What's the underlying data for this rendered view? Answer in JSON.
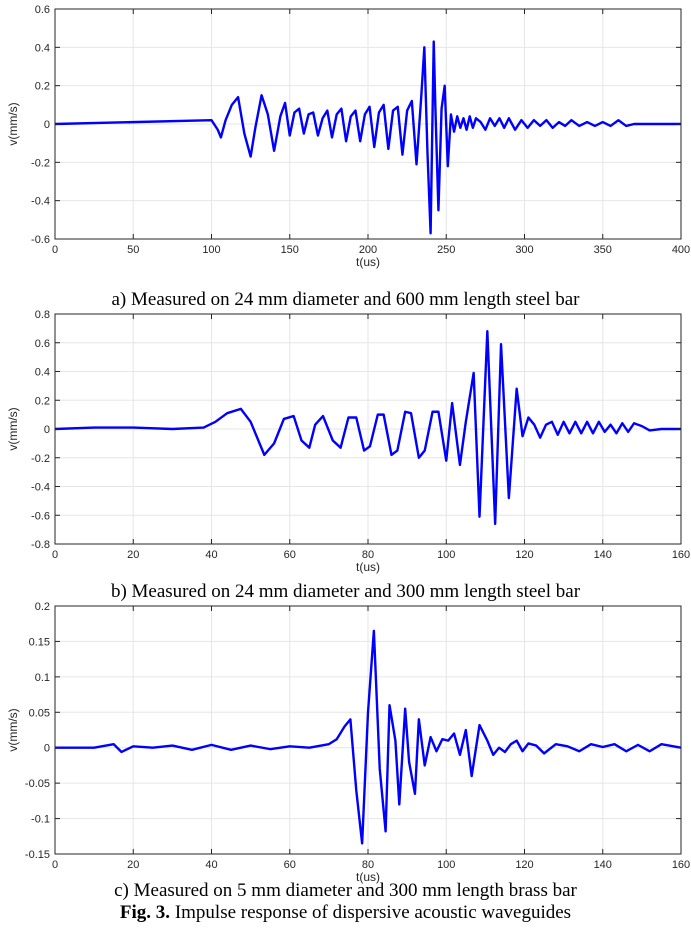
{
  "colors": {
    "line": "#0000ff",
    "grid": "#e6e6e6",
    "axis": "#262626"
  },
  "captions": {
    "a": "a) Measured on 24 mm diameter and 600 mm length steel bar",
    "b": "b) Measured on 24 mm diameter and 300 mm length steel bar",
    "c": "c) Measured on 5 mm diameter and 300 mm length brass bar",
    "fig_label": "Fig. 3.",
    "fig_text": " Impulse response of dispersive acoustic waveguides"
  },
  "chart_data": [
    {
      "type": "line",
      "title": "",
      "xlabel": "t(us)",
      "ylabel": "v(mm/s)",
      "xlim": [
        0,
        400
      ],
      "ylim": [
        -0.6,
        0.6
      ],
      "xticks": [
        0,
        50,
        100,
        150,
        200,
        250,
        300,
        350,
        400
      ],
      "yticks": [
        -0.6,
        -0.4,
        -0.2,
        0,
        0.2,
        0.4,
        0.6
      ],
      "grid": true,
      "series": [
        {
          "x": [
            0,
            100,
            104,
            106,
            109,
            113,
            117,
            121,
            125,
            128,
            132,
            136,
            140,
            144,
            147,
            150,
            153,
            156,
            159,
            162,
            165,
            168,
            171,
            174,
            177,
            180,
            183,
            186,
            189,
            192,
            195,
            198,
            201,
            204,
            207,
            210,
            213,
            216,
            219,
            222,
            225,
            228,
            231,
            234,
            236,
            238,
            240,
            242,
            243,
            245,
            247,
            249,
            251,
            253,
            255,
            257,
            259,
            261,
            263,
            265,
            267,
            269,
            272,
            275,
            278,
            281,
            284,
            287,
            290,
            294,
            298,
            302,
            306,
            310,
            314,
            318,
            322,
            326,
            330,
            335,
            340,
            345,
            350,
            355,
            360,
            365,
            370,
            380,
            400
          ],
          "y": [
            0,
            0.02,
            -0.03,
            -0.07,
            0.02,
            0.1,
            0.14,
            -0.05,
            -0.17,
            -0.02,
            0.15,
            0.05,
            -0.14,
            0.04,
            0.11,
            -0.06,
            0.06,
            0.08,
            -0.05,
            0.05,
            0.06,
            -0.06,
            0.03,
            0.07,
            -0.07,
            0.05,
            0.08,
            -0.09,
            0.04,
            0.07,
            -0.09,
            0.05,
            0.09,
            -0.12,
            0.06,
            0.1,
            -0.13,
            0.07,
            0.09,
            -0.16,
            0.07,
            0.12,
            -0.21,
            0.14,
            0.4,
            -0.15,
            -0.57,
            0.43,
            0.1,
            -0.45,
            0.08,
            0.2,
            -0.22,
            0.05,
            -0.04,
            0.04,
            -0.02,
            0.03,
            -0.03,
            0.04,
            -0.02,
            0.03,
            0.01,
            -0.03,
            0.03,
            -0.01,
            0.03,
            -0.02,
            0.03,
            -0.03,
            0.02,
            -0.02,
            0.02,
            -0.01,
            0.02,
            -0.02,
            0.01,
            -0.01,
            0.02,
            -0.01,
            0.01,
            -0.01,
            0.01,
            -0.01,
            0.02,
            -0.01,
            0,
            0,
            0
          ]
        }
      ]
    },
    {
      "type": "line",
      "title": "",
      "xlabel": "t(us)",
      "ylabel": "v(mm/s)",
      "xlim": [
        0,
        160
      ],
      "ylim": [
        -0.8,
        0.8
      ],
      "xticks": [
        0,
        20,
        40,
        60,
        80,
        100,
        120,
        140,
        160
      ],
      "yticks": [
        -0.8,
        -0.6,
        -0.4,
        -0.2,
        0,
        0.2,
        0.4,
        0.6,
        0.8
      ],
      "grid": true,
      "series": [
        {
          "x": [
            0,
            10,
            20,
            30,
            38,
            41,
            44,
            47.5,
            50,
            53.5,
            56,
            58.5,
            61,
            63,
            65,
            66.5,
            68.5,
            71,
            73,
            75,
            77,
            79,
            80.5,
            82.5,
            84,
            86,
            87.5,
            89.5,
            91,
            93,
            94.5,
            96.5,
            98,
            100,
            101.5,
            103.5,
            105,
            107,
            108.5,
            110.5,
            112.5,
            114,
            116,
            118,
            119.5,
            121,
            122.5,
            124,
            125.5,
            127,
            128.5,
            130,
            131.5,
            133,
            134.5,
            136,
            137.5,
            139,
            140.5,
            142,
            143.5,
            145,
            146.5,
            148,
            150,
            152,
            155,
            160
          ],
          "y": [
            0,
            0.01,
            0.01,
            0,
            0.01,
            0.05,
            0.11,
            0.14,
            0.05,
            -0.18,
            -0.1,
            0.07,
            0.09,
            -0.08,
            -0.13,
            0.03,
            0.09,
            -0.08,
            -0.13,
            0.08,
            0.08,
            -0.15,
            -0.12,
            0.1,
            0.1,
            -0.18,
            -0.15,
            0.12,
            0.11,
            -0.2,
            -0.15,
            0.12,
            0.12,
            -0.22,
            0.18,
            -0.25,
            0.05,
            0.39,
            -0.61,
            0.68,
            -0.66,
            0.59,
            -0.48,
            0.28,
            -0.05,
            0.08,
            0.03,
            -0.06,
            0.03,
            0.05,
            -0.04,
            0.05,
            -0.03,
            0.05,
            -0.03,
            0.05,
            -0.03,
            0.05,
            -0.02,
            0.03,
            -0.03,
            0.04,
            -0.02,
            0.04,
            0.02,
            -0.01,
            0,
            0
          ]
        }
      ]
    },
    {
      "type": "line",
      "title": "",
      "xlabel": "t(us)",
      "ylabel": "v(mm/s)",
      "xlim": [
        0,
        160
      ],
      "ylim": [
        -0.15,
        0.2
      ],
      "xticks": [
        0,
        20,
        40,
        60,
        80,
        100,
        120,
        140,
        160
      ],
      "yticks": [
        -0.15,
        -0.1,
        -0.05,
        0,
        0.05,
        0.1,
        0.15,
        0.2
      ],
      "grid": true,
      "series": [
        {
          "x": [
            0,
            10,
            15,
            17,
            20,
            25,
            30,
            35,
            40,
            45,
            50,
            55,
            60,
            65,
            70,
            72,
            74,
            75.5,
            77,
            78.5,
            80,
            81.5,
            83,
            84.5,
            85.5,
            87,
            88,
            89.5,
            90.5,
            92,
            93,
            94.5,
            96,
            97.5,
            99,
            100.5,
            102,
            103.5,
            105,
            106.5,
            108.5,
            110.5,
            112,
            113.5,
            115,
            116.5,
            118,
            119.5,
            121,
            123,
            125,
            128,
            131,
            134,
            137,
            140,
            143,
            146,
            149,
            152,
            155,
            160
          ],
          "y": [
            0,
            0,
            0.005,
            -0.006,
            0.002,
            0,
            0.003,
            -0.003,
            0.004,
            -0.003,
            0.003,
            -0.002,
            0.002,
            0,
            0.005,
            0.012,
            0.03,
            0.04,
            -0.06,
            -0.135,
            0.05,
            0.165,
            -0.03,
            -0.118,
            0.06,
            0.01,
            -0.08,
            0.055,
            -0.02,
            -0.065,
            0.04,
            -0.025,
            0.015,
            -0.005,
            0.012,
            0.01,
            0.02,
            -0.01,
            0.025,
            -0.04,
            0.032,
            0.01,
            -0.01,
            0,
            -0.006,
            0.005,
            0.01,
            -0.005,
            0.006,
            0.003,
            -0.008,
            0.005,
            0.002,
            -0.005,
            0.005,
            0.001,
            0.005,
            -0.005,
            0.004,
            -0.005,
            0.005,
            0
          ]
        }
      ]
    }
  ]
}
